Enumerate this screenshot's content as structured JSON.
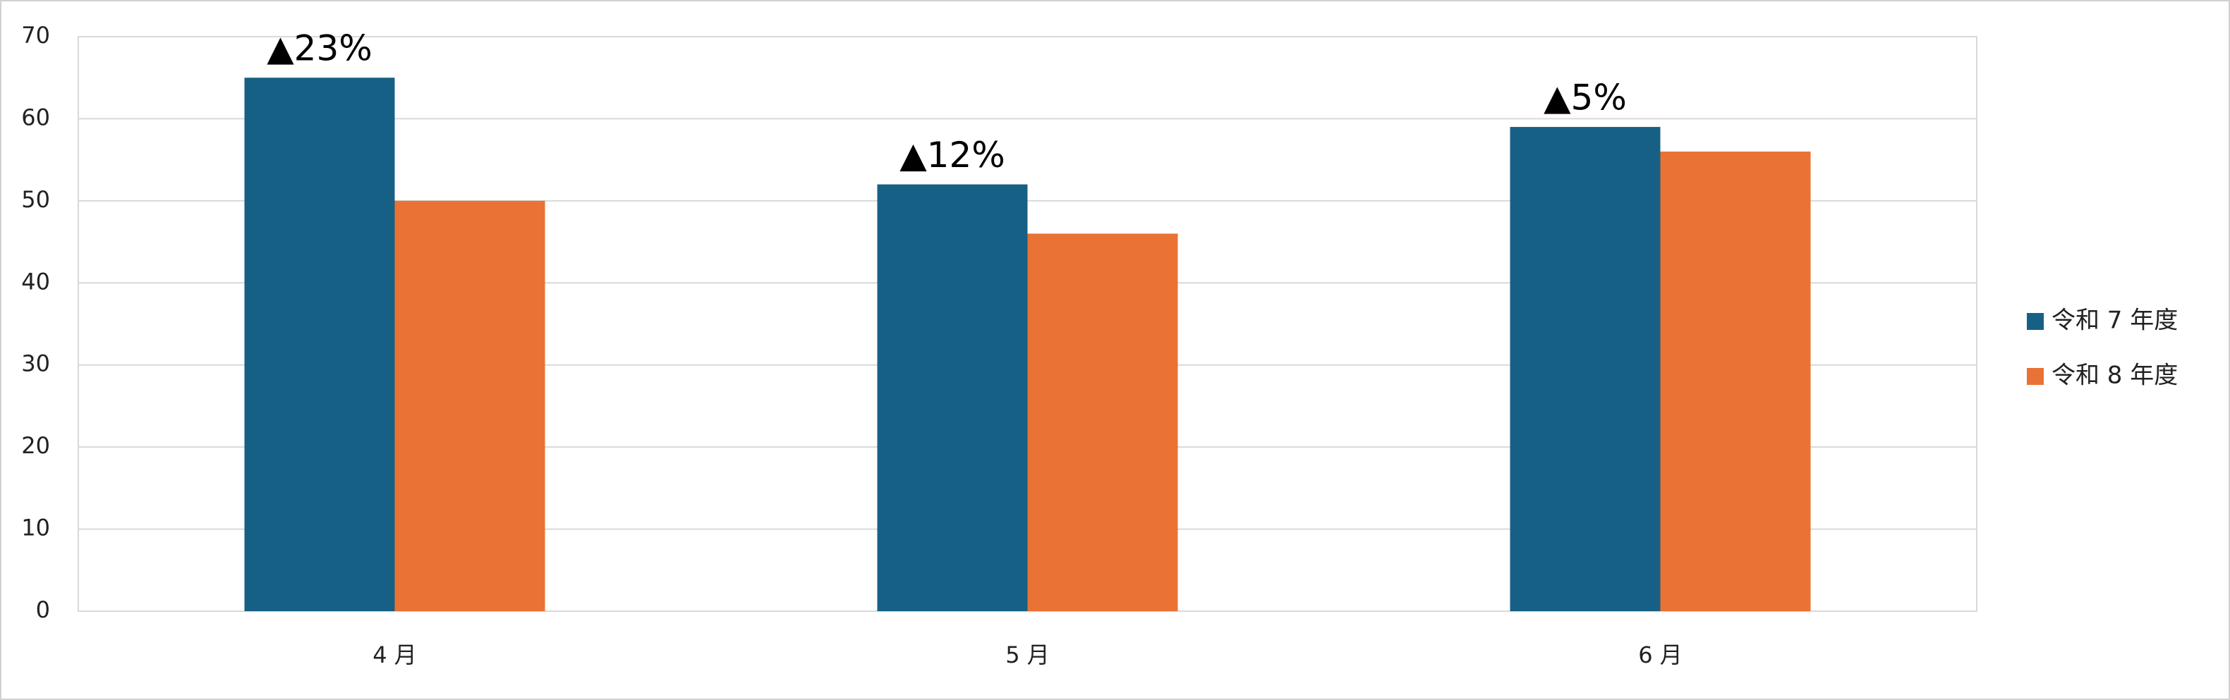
{
  "chart_data": {
    "type": "bar",
    "categories": [
      "4 月",
      "5 月",
      "6 月"
    ],
    "series": [
      {
        "name": "令和 7 年度",
        "color": "#176085",
        "values": [
          65,
          52,
          59
        ]
      },
      {
        "name": "令和 8 年度",
        "color": "#ea7234",
        "values": [
          50,
          46,
          56
        ]
      }
    ],
    "annotations": [
      "▲23%",
      "▲12%",
      "▲5%"
    ],
    "ylim": [
      0,
      70
    ],
    "yticks": [
      0,
      10,
      20,
      30,
      40,
      50,
      60,
      70
    ],
    "grid": true,
    "legend": "right"
  }
}
